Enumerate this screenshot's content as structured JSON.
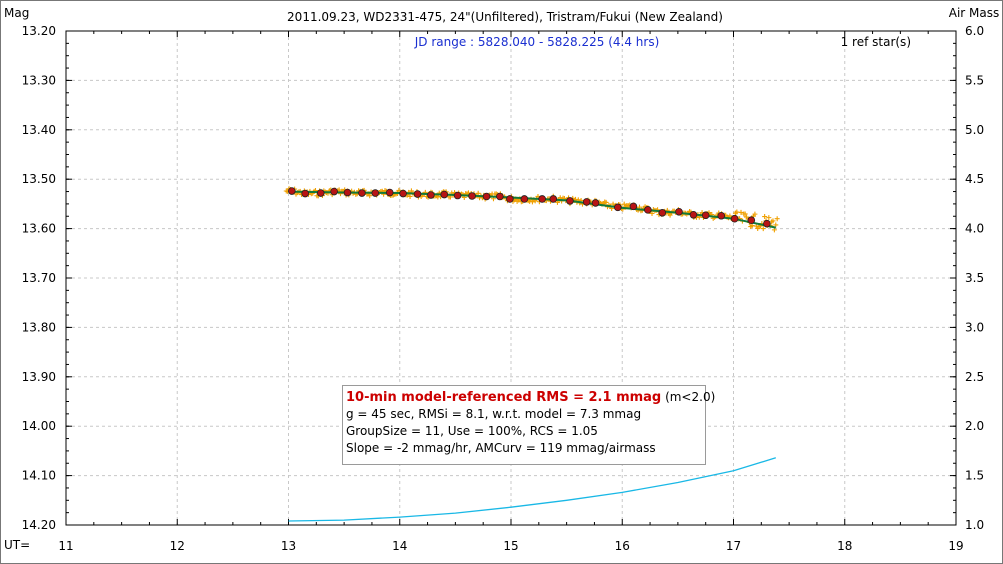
{
  "chart_data": {
    "type": "scatter",
    "title": "2011.09.23, WD2331-475, 24\"(Unfiltered), Tristram/Fukui (New Zealand)",
    "subtitle": "JD range : 5828.040 - 5828.225 (4.4 hrs)",
    "ref_stars": "1 ref star(s)",
    "ylabel": "Mag",
    "y2label": "Air Mass",
    "xlabel": "UT=",
    "xlim": [
      11,
      19
    ],
    "ylim": [
      13.2,
      14.2
    ],
    "y2lim": [
      1.0,
      6.0
    ],
    "y_inverted": true,
    "grid": true,
    "xticks": [
      "11",
      "12",
      "13",
      "14",
      "15",
      "16",
      "17",
      "18",
      "19"
    ],
    "yticks": [
      "13.20",
      "13.30",
      "13.40",
      "13.50",
      "13.60",
      "13.70",
      "13.80",
      "13.90",
      "14.00",
      "14.10",
      "14.20"
    ],
    "y2ticks": [
      "6.0",
      "5.5",
      "5.0",
      "4.5",
      "4.0",
      "3.5",
      "3.0",
      "2.5",
      "2.0",
      "1.5",
      "1.0"
    ],
    "colors": {
      "raw": "#f0a000",
      "binned": "#b81414",
      "model": "#127a3a",
      "airmass": "#19b8e6",
      "grid": "#c8c8c8"
    },
    "series": [
      {
        "kind": "binned",
        "x": [
          13.03,
          13.15,
          13.29,
          13.41,
          13.53,
          13.66,
          13.78,
          13.91,
          14.03,
          14.16,
          14.28,
          14.4,
          14.52,
          14.65,
          14.78,
          14.9,
          14.99,
          15.12,
          15.28,
          15.38,
          15.53,
          15.68,
          15.76,
          15.96,
          16.1,
          16.23,
          16.36,
          16.51,
          16.64,
          16.75,
          16.89,
          17.01,
          17.16,
          17.3
        ],
        "y": [
          13.524,
          13.529,
          13.528,
          13.525,
          13.527,
          13.528,
          13.528,
          13.527,
          13.529,
          13.53,
          13.532,
          13.531,
          13.533,
          13.534,
          13.535,
          13.535,
          13.54,
          13.54,
          13.54,
          13.54,
          13.544,
          13.546,
          13.548,
          13.557,
          13.555,
          13.562,
          13.568,
          13.566,
          13.572,
          13.573,
          13.574,
          13.58,
          13.583,
          13.59
        ]
      },
      {
        "kind": "model",
        "x": [
          13.0,
          13.5,
          14.0,
          14.5,
          15.0,
          15.5,
          15.8,
          16.0,
          16.5,
          17.0,
          17.38
        ],
        "y": [
          13.525,
          13.527,
          13.528,
          13.532,
          13.537,
          13.543,
          13.552,
          13.558,
          13.568,
          13.58,
          13.598
        ]
      },
      {
        "kind": "airmass",
        "x": [
          13.0,
          13.5,
          14.0,
          14.5,
          15.0,
          15.5,
          16.0,
          16.5,
          17.0,
          17.38
        ],
        "y": [
          1.04,
          1.05,
          1.08,
          1.12,
          1.18,
          1.25,
          1.33,
          1.43,
          1.55,
          1.68
        ]
      }
    ]
  },
  "stats": {
    "line1_highlight": "10-min model-referenced RMS = 2.1 mmag",
    "line1_suffix": " (m<2.0)",
    "line2": "g = 45 sec, RMSi = 8.1, w.r.t. model = 7.3 mmag",
    "line3": "GroupSize = 11, Use = 100%, RCS = 1.05",
    "line4": "Slope = -2 mmag/hr, AMCurv = 119 mmag/airmass"
  }
}
